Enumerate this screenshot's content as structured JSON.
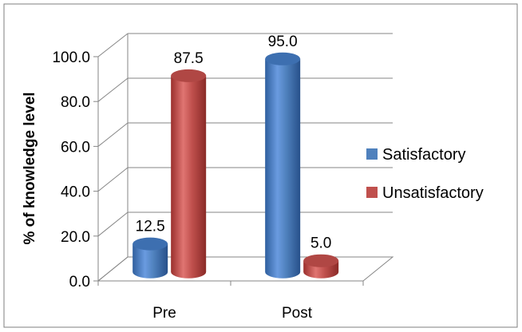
{
  "chart_data": {
    "type": "bar",
    "categories": [
      "Pre",
      "Post"
    ],
    "series": [
      {
        "name": "Satisfactory",
        "values": [
          12.5,
          95.0
        ],
        "color": "#4F81BD"
      },
      {
        "name": "Unsatisfactory",
        "values": [
          87.5,
          5.0
        ],
        "color": "#C0504D"
      }
    ],
    "data_labels": [
      [
        "12.5",
        "95.0"
      ],
      [
        "87.5",
        "5.0"
      ]
    ],
    "title": "",
    "xlabel": "",
    "ylabel": "% of knowledge level",
    "ylim": [
      0,
      100
    ],
    "yticks": [
      "0.0",
      "20.0",
      "40.0",
      "60.0",
      "80.0",
      "100.0"
    ],
    "grid": true,
    "legend_position": "right",
    "style": "3d-cylinder"
  }
}
